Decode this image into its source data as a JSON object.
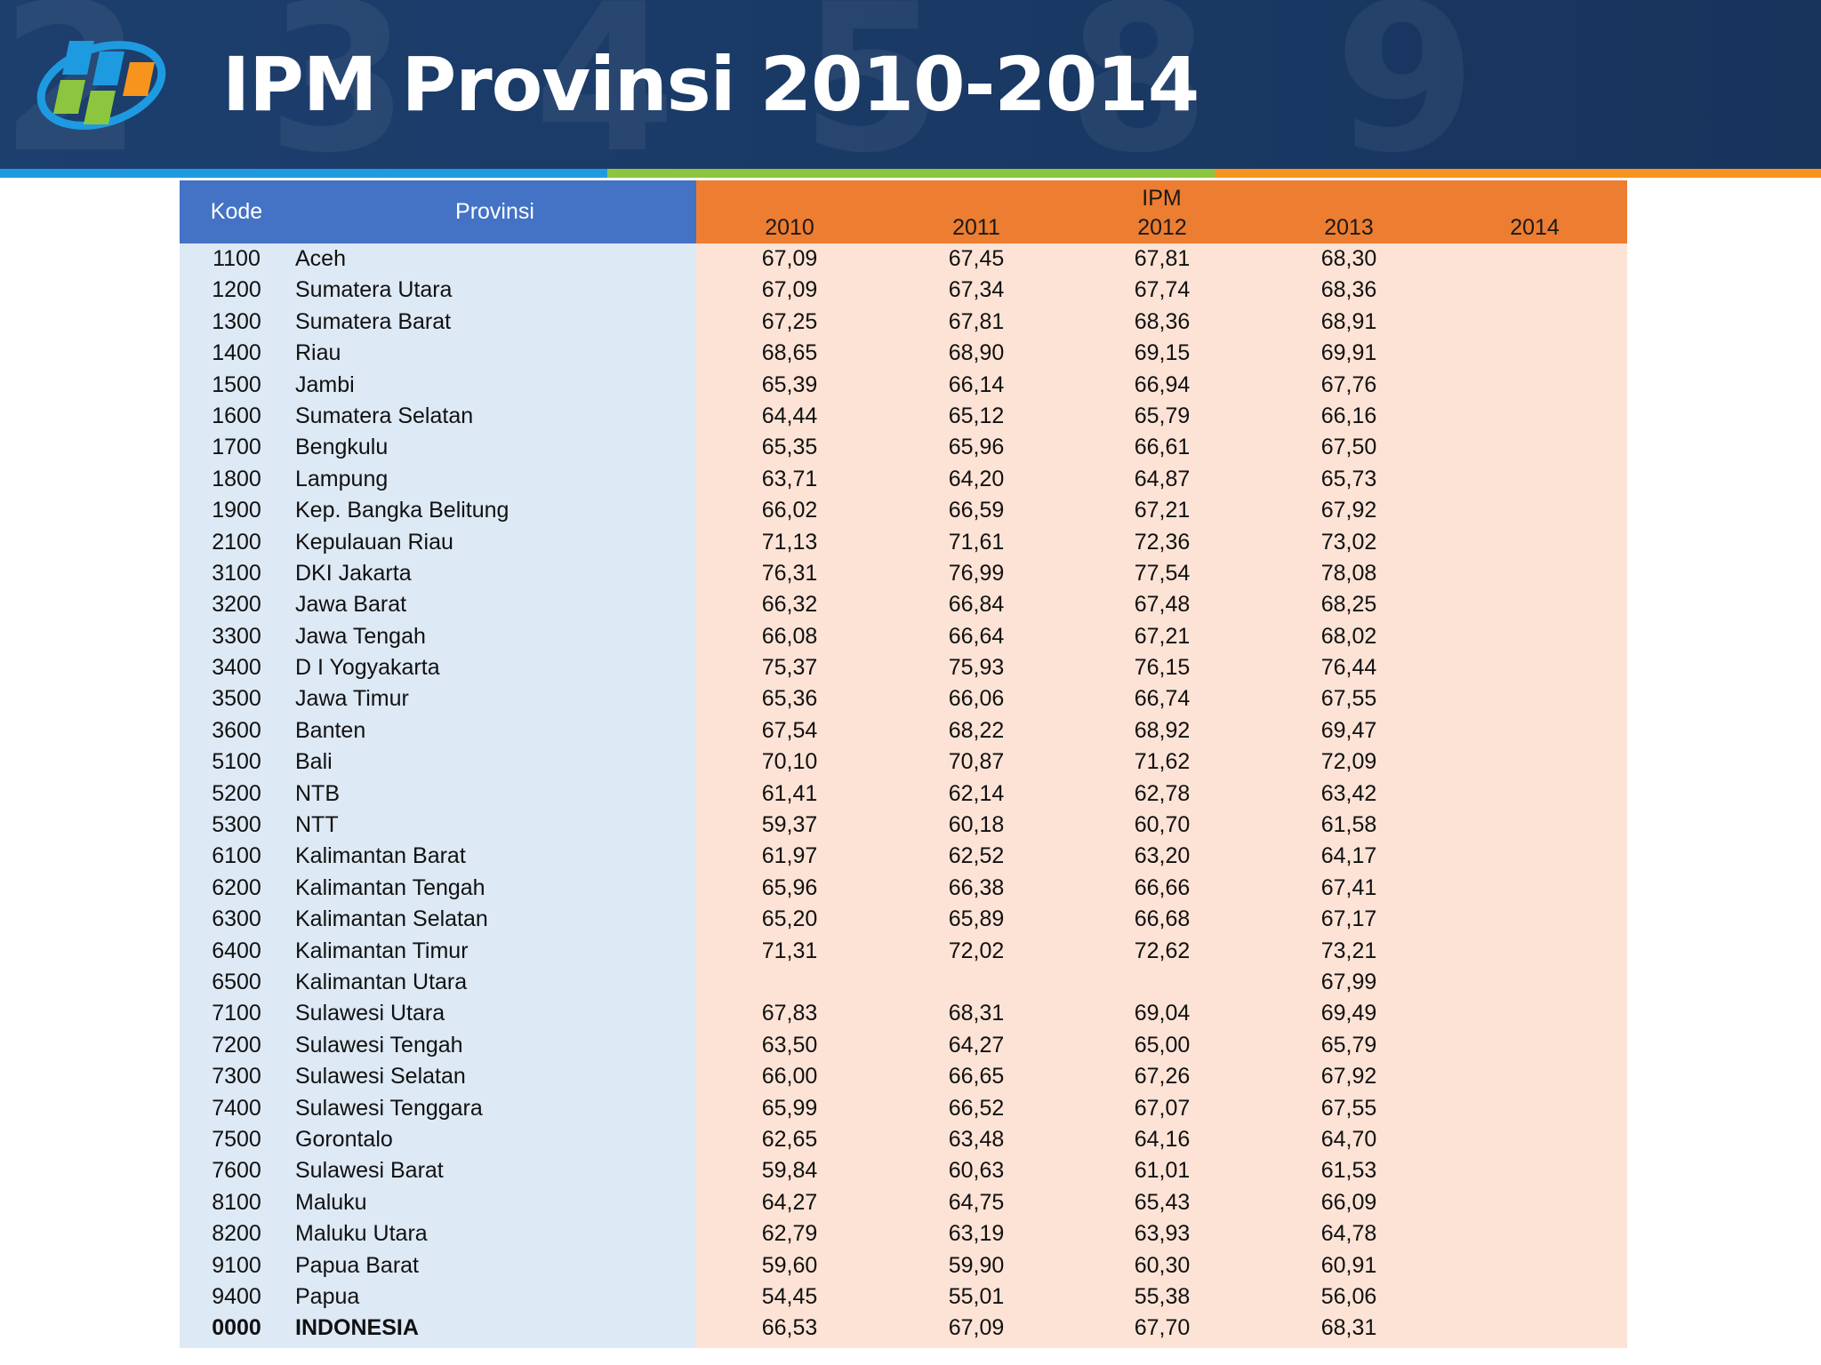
{
  "header": {
    "title": "IPM Provinsi 2010-2014",
    "logo_icon": "bps-logo-icon",
    "background_digits": "2 3 4 5 8 9"
  },
  "colors": {
    "header_bg": "#1d3f6e",
    "stripe_blue": "#1e9be0",
    "stripe_green": "#8cc63f",
    "stripe_orange": "#f7941d",
    "head_left": "#4472c4",
    "head_right": "#ed7d31",
    "body_left": "#dde9f5",
    "body_right": "#fce3d6"
  },
  "table": {
    "col_kode": "Kode",
    "col_provinsi": "Provinsi",
    "group_label": "IPM",
    "years": [
      "2010",
      "2011",
      "2012",
      "2013",
      "2014"
    ],
    "rows": [
      {
        "kode": "1100",
        "provinsi": "Aceh",
        "v": [
          "67,09",
          "67,45",
          "67,81",
          "68,30",
          ""
        ]
      },
      {
        "kode": "1200",
        "provinsi": "Sumatera Utara",
        "v": [
          "67,09",
          "67,34",
          "67,74",
          "68,36",
          ""
        ]
      },
      {
        "kode": "1300",
        "provinsi": "Sumatera Barat",
        "v": [
          "67,25",
          "67,81",
          "68,36",
          "68,91",
          ""
        ]
      },
      {
        "kode": "1400",
        "provinsi": "Riau",
        "v": [
          "68,65",
          "68,90",
          "69,15",
          "69,91",
          ""
        ]
      },
      {
        "kode": "1500",
        "provinsi": "Jambi",
        "v": [
          "65,39",
          "66,14",
          "66,94",
          "67,76",
          ""
        ]
      },
      {
        "kode": "1600",
        "provinsi": "Sumatera Selatan",
        "v": [
          "64,44",
          "65,12",
          "65,79",
          "66,16",
          ""
        ]
      },
      {
        "kode": "1700",
        "provinsi": "Bengkulu",
        "v": [
          "65,35",
          "65,96",
          "66,61",
          "67,50",
          ""
        ]
      },
      {
        "kode": "1800",
        "provinsi": "Lampung",
        "v": [
          "63,71",
          "64,20",
          "64,87",
          "65,73",
          ""
        ]
      },
      {
        "kode": "1900",
        "provinsi": "Kep. Bangka Belitung",
        "v": [
          "66,02",
          "66,59",
          "67,21",
          "67,92",
          ""
        ]
      },
      {
        "kode": "2100",
        "provinsi": "Kepulauan Riau",
        "v": [
          "71,13",
          "71,61",
          "72,36",
          "73,02",
          ""
        ]
      },
      {
        "kode": "3100",
        "provinsi": "DKI Jakarta",
        "v": [
          "76,31",
          "76,99",
          "77,54",
          "78,08",
          ""
        ]
      },
      {
        "kode": "3200",
        "provinsi": "Jawa Barat",
        "v": [
          "66,32",
          "66,84",
          "67,48",
          "68,25",
          ""
        ]
      },
      {
        "kode": "3300",
        "provinsi": "Jawa Tengah",
        "v": [
          "66,08",
          "66,64",
          "67,21",
          "68,02",
          ""
        ]
      },
      {
        "kode": "3400",
        "provinsi": "D I Yogyakarta",
        "v": [
          "75,37",
          "75,93",
          "76,15",
          "76,44",
          ""
        ]
      },
      {
        "kode": "3500",
        "provinsi": "Jawa Timur",
        "v": [
          "65,36",
          "66,06",
          "66,74",
          "67,55",
          ""
        ]
      },
      {
        "kode": "3600",
        "provinsi": "Banten",
        "v": [
          "67,54",
          "68,22",
          "68,92",
          "69,47",
          ""
        ]
      },
      {
        "kode": "5100",
        "provinsi": "Bali",
        "v": [
          "70,10",
          "70,87",
          "71,62",
          "72,09",
          ""
        ]
      },
      {
        "kode": "5200",
        "provinsi": "NTB",
        "v": [
          "61,41",
          "62,14",
          "62,78",
          "63,42",
          ""
        ]
      },
      {
        "kode": "5300",
        "provinsi": "NTT",
        "v": [
          "59,37",
          "60,18",
          "60,70",
          "61,58",
          ""
        ]
      },
      {
        "kode": "6100",
        "provinsi": "Kalimantan Barat",
        "v": [
          "61,97",
          "62,52",
          "63,20",
          "64,17",
          ""
        ]
      },
      {
        "kode": "6200",
        "provinsi": "Kalimantan Tengah",
        "v": [
          "65,96",
          "66,38",
          "66,66",
          "67,41",
          ""
        ]
      },
      {
        "kode": "6300",
        "provinsi": "Kalimantan Selatan",
        "v": [
          "65,20",
          "65,89",
          "66,68",
          "67,17",
          ""
        ]
      },
      {
        "kode": "6400",
        "provinsi": "Kalimantan Timur",
        "v": [
          "71,31",
          "72,02",
          "72,62",
          "73,21",
          ""
        ]
      },
      {
        "kode": "6500",
        "provinsi": "Kalimantan Utara",
        "v": [
          "",
          "",
          "",
          "67,99",
          ""
        ]
      },
      {
        "kode": "7100",
        "provinsi": "Sulawesi Utara",
        "v": [
          "67,83",
          "68,31",
          "69,04",
          "69,49",
          ""
        ]
      },
      {
        "kode": "7200",
        "provinsi": "Sulawesi Tengah",
        "v": [
          "63,50",
          "64,27",
          "65,00",
          "65,79",
          ""
        ]
      },
      {
        "kode": "7300",
        "provinsi": "Sulawesi Selatan",
        "v": [
          "66,00",
          "66,65",
          "67,26",
          "67,92",
          ""
        ]
      },
      {
        "kode": "7400",
        "provinsi": "Sulawesi Tenggara",
        "v": [
          "65,99",
          "66,52",
          "67,07",
          "67,55",
          ""
        ]
      },
      {
        "kode": "7500",
        "provinsi": "Gorontalo",
        "v": [
          "62,65",
          "63,48",
          "64,16",
          "64,70",
          ""
        ]
      },
      {
        "kode": "7600",
        "provinsi": "Sulawesi Barat",
        "v": [
          "59,84",
          "60,63",
          "61,01",
          "61,53",
          ""
        ]
      },
      {
        "kode": "8100",
        "provinsi": "Maluku",
        "v": [
          "64,27",
          "64,75",
          "65,43",
          "66,09",
          ""
        ]
      },
      {
        "kode": "8200",
        "provinsi": "Maluku Utara",
        "v": [
          "62,79",
          "63,19",
          "63,93",
          "64,78",
          ""
        ]
      },
      {
        "kode": "9100",
        "provinsi": "Papua Barat",
        "v": [
          "59,60",
          "59,90",
          "60,30",
          "60,91",
          ""
        ]
      },
      {
        "kode": "9400",
        "provinsi": "Papua",
        "v": [
          "54,45",
          "55,01",
          "55,38",
          "56,06",
          ""
        ]
      },
      {
        "kode": "0000",
        "provinsi": "INDONESIA",
        "v": [
          "66,53",
          "67,09",
          "67,70",
          "68,31",
          ""
        ],
        "total": true
      }
    ]
  }
}
